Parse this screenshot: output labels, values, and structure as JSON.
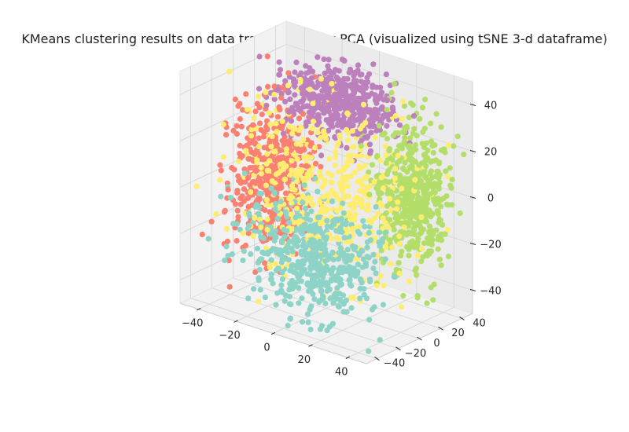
{
  "chart_data": {
    "type": "scatter",
    "projection": "3d",
    "title": "KMeans clustering results on data transformed by PCA (visualized using tSNE 3-d dataframe)",
    "xlabel": "",
    "ylabel": "",
    "zlabel": "",
    "grid": true,
    "legend": "none",
    "xlim": [
      -50,
      50
    ],
    "ylim": [
      -50,
      50
    ],
    "zlim": [
      -50,
      50
    ],
    "x_ticks": [
      -40,
      -20,
      0,
      20,
      40
    ],
    "y_ticks": [
      -40,
      -20,
      0,
      20,
      40
    ],
    "z_ticks": [
      -40,
      -20,
      0,
      20,
      40
    ],
    "x_tick_labels": [
      "−40",
      "−20",
      "0",
      "20",
      "40"
    ],
    "y_tick_labels": [
      "−40",
      "−20",
      "0",
      "20",
      "40"
    ],
    "z_tick_labels": [
      "−40",
      "−20",
      "0",
      "20",
      "40"
    ],
    "series": [
      {
        "cluster": 0,
        "color": "#fa8072",
        "center": [
          -35,
          10,
          -5
        ],
        "spread": [
          9,
          14,
          16
        ]
      },
      {
        "cluster": 1,
        "color": "#8dd3c7",
        "center": [
          10,
          -30,
          -20
        ],
        "spread": [
          16,
          10,
          12
        ]
      },
      {
        "cluster": 2,
        "color": "#bc80bd",
        "center": [
          -10,
          30,
          30
        ],
        "spread": [
          14,
          12,
          7
        ]
      },
      {
        "cluster": 3,
        "color": "#b3de69",
        "center": [
          30,
          30,
          0
        ],
        "spread": [
          8,
          10,
          16
        ]
      },
      {
        "cluster": 4,
        "color": "#ffed6f",
        "center": [
          0,
          0,
          0
        ],
        "spread": [
          20,
          20,
          18
        ]
      }
    ]
  }
}
